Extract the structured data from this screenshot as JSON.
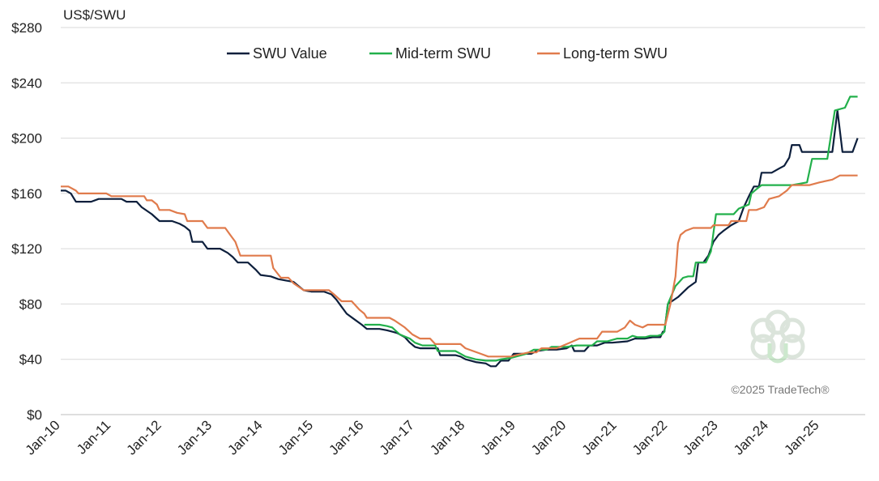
{
  "chart_data": {
    "type": "line",
    "ylabel": "US$/SWU",
    "ylim": [
      0,
      280
    ],
    "yticks": [
      0,
      40,
      80,
      120,
      160,
      200,
      240,
      280
    ],
    "ytick_labels": [
      "$0",
      "$40",
      "$80",
      "$120",
      "$160",
      "$200",
      "$240",
      "$280"
    ],
    "xlim": [
      2010.0,
      2025.9
    ],
    "xticks": [
      2010,
      2011,
      2012,
      2013,
      2014,
      2015,
      2016,
      2017,
      2018,
      2019,
      2020,
      2021,
      2022,
      2023,
      2024,
      2025
    ],
    "xtick_labels": [
      "Jan-10",
      "Jan-11",
      "Jan-12",
      "Jan-13",
      "Jan-14",
      "Jan-15",
      "Jan-16",
      "Jan-17",
      "Jan-18",
      "Jan-19",
      "Jan-20",
      "Jan-21",
      "Jan-22",
      "Jan-23",
      "Jan-24",
      "Jan-25"
    ],
    "grid": "horizontal",
    "legend_position": "top",
    "copyright": "©2025 TradeTech®",
    "series": [
      {
        "name": "SWU Value",
        "color": "#0d1f3c",
        "points": [
          [
            2010.0,
            162
          ],
          [
            2010.1,
            162
          ],
          [
            2010.2,
            160
          ],
          [
            2010.3,
            154
          ],
          [
            2010.6,
            154
          ],
          [
            2010.75,
            156
          ],
          [
            2011.2,
            156
          ],
          [
            2011.3,
            154
          ],
          [
            2011.5,
            154
          ],
          [
            2011.6,
            150
          ],
          [
            2011.8,
            145
          ],
          [
            2011.95,
            140
          ],
          [
            2012.2,
            140
          ],
          [
            2012.35,
            138
          ],
          [
            2012.45,
            136
          ],
          [
            2012.55,
            133
          ],
          [
            2012.6,
            125
          ],
          [
            2012.8,
            125
          ],
          [
            2012.9,
            120
          ],
          [
            2013.15,
            120
          ],
          [
            2013.3,
            117
          ],
          [
            2013.4,
            114
          ],
          [
            2013.5,
            110
          ],
          [
            2013.7,
            110
          ],
          [
            2013.85,
            105
          ],
          [
            2013.95,
            101
          ],
          [
            2014.15,
            100
          ],
          [
            2014.3,
            98
          ],
          [
            2014.45,
            97
          ],
          [
            2014.6,
            96
          ],
          [
            2014.7,
            93
          ],
          [
            2014.8,
            90
          ],
          [
            2014.95,
            89
          ],
          [
            2015.2,
            89
          ],
          [
            2015.35,
            87
          ],
          [
            2015.45,
            83
          ],
          [
            2015.55,
            78
          ],
          [
            2015.65,
            73
          ],
          [
            2015.8,
            69
          ],
          [
            2015.95,
            65
          ],
          [
            2016.05,
            62
          ],
          [
            2016.3,
            62
          ],
          [
            2016.45,
            61
          ],
          [
            2016.55,
            60
          ],
          [
            2016.65,
            59
          ],
          [
            2016.8,
            56
          ],
          [
            2016.9,
            52
          ],
          [
            2017.0,
            49
          ],
          [
            2017.1,
            48
          ],
          [
            2017.45,
            48
          ],
          [
            2017.5,
            43
          ],
          [
            2017.8,
            43
          ],
          [
            2017.9,
            42
          ],
          [
            2018.0,
            40
          ],
          [
            2018.2,
            38
          ],
          [
            2018.4,
            37
          ],
          [
            2018.5,
            35
          ],
          [
            2018.6,
            35
          ],
          [
            2018.7,
            39
          ],
          [
            2018.85,
            39
          ],
          [
            2018.95,
            44
          ],
          [
            2019.3,
            44
          ],
          [
            2019.4,
            46
          ],
          [
            2019.6,
            47
          ],
          [
            2019.8,
            47
          ],
          [
            2020.0,
            48
          ],
          [
            2020.1,
            50
          ],
          [
            2020.15,
            46
          ],
          [
            2020.35,
            46
          ],
          [
            2020.45,
            50
          ],
          [
            2020.6,
            50
          ],
          [
            2020.75,
            52
          ],
          [
            2020.9,
            52
          ],
          [
            2021.2,
            53
          ],
          [
            2021.35,
            55
          ],
          [
            2021.55,
            55
          ],
          [
            2021.7,
            56
          ],
          [
            2021.85,
            56
          ],
          [
            2021.9,
            60
          ],
          [
            2021.93,
            60
          ],
          [
            2022.0,
            80
          ],
          [
            2022.2,
            85
          ],
          [
            2022.4,
            92
          ],
          [
            2022.55,
            96
          ],
          [
            2022.6,
            110
          ],
          [
            2022.7,
            110
          ],
          [
            2022.8,
            115
          ],
          [
            2022.9,
            125
          ],
          [
            2023.0,
            130
          ],
          [
            2023.1,
            133
          ],
          [
            2023.25,
            137
          ],
          [
            2023.4,
            140
          ],
          [
            2023.5,
            150
          ],
          [
            2023.6,
            158
          ],
          [
            2023.7,
            165
          ],
          [
            2023.8,
            165
          ],
          [
            2023.85,
            175
          ],
          [
            2024.05,
            175
          ],
          [
            2024.2,
            178
          ],
          [
            2024.3,
            180
          ],
          [
            2024.4,
            186
          ],
          [
            2024.45,
            195
          ],
          [
            2024.6,
            195
          ],
          [
            2024.65,
            190
          ],
          [
            2024.95,
            190
          ],
          [
            2025.15,
            190
          ],
          [
            2025.25,
            190
          ],
          [
            2025.35,
            220
          ],
          [
            2025.45,
            190
          ],
          [
            2025.65,
            190
          ],
          [
            2025.75,
            200
          ]
        ]
      },
      {
        "name": "Mid-term SWU",
        "color": "#22b04b",
        "points": [
          [
            2016.0,
            65
          ],
          [
            2016.3,
            65
          ],
          [
            2016.45,
            64
          ],
          [
            2016.55,
            63
          ],
          [
            2016.7,
            58
          ],
          [
            2016.9,
            55
          ],
          [
            2017.0,
            52
          ],
          [
            2017.15,
            50
          ],
          [
            2017.4,
            50
          ],
          [
            2017.45,
            46
          ],
          [
            2017.8,
            46
          ],
          [
            2017.9,
            44
          ],
          [
            2018.0,
            42
          ],
          [
            2018.2,
            40
          ],
          [
            2018.4,
            39
          ],
          [
            2018.6,
            39
          ],
          [
            2018.7,
            40
          ],
          [
            2018.9,
            41
          ],
          [
            2019.0,
            42
          ],
          [
            2019.2,
            44
          ],
          [
            2019.35,
            47
          ],
          [
            2019.6,
            47
          ],
          [
            2019.7,
            49
          ],
          [
            2020.0,
            49
          ],
          [
            2020.2,
            50
          ],
          [
            2020.5,
            50
          ],
          [
            2020.6,
            53
          ],
          [
            2020.8,
            53
          ],
          [
            2021.0,
            55
          ],
          [
            2021.2,
            55
          ],
          [
            2021.3,
            57
          ],
          [
            2021.4,
            56
          ],
          [
            2021.55,
            56
          ],
          [
            2021.65,
            57
          ],
          [
            2021.8,
            57
          ],
          [
            2021.88,
            58
          ],
          [
            2021.93,
            60
          ],
          [
            2022.0,
            80
          ],
          [
            2022.15,
            93
          ],
          [
            2022.3,
            99
          ],
          [
            2022.4,
            100
          ],
          [
            2022.5,
            100
          ],
          [
            2022.55,
            110
          ],
          [
            2022.75,
            110
          ],
          [
            2022.85,
            118
          ],
          [
            2022.95,
            145
          ],
          [
            2023.3,
            145
          ],
          [
            2023.4,
            149
          ],
          [
            2023.6,
            152
          ],
          [
            2023.65,
            160
          ],
          [
            2023.75,
            163
          ],
          [
            2023.85,
            166
          ],
          [
            2024.3,
            166
          ],
          [
            2024.45,
            166
          ],
          [
            2024.6,
            167
          ],
          [
            2024.75,
            168
          ],
          [
            2024.85,
            185
          ],
          [
            2025.15,
            185
          ],
          [
            2025.3,
            220
          ],
          [
            2025.5,
            222
          ],
          [
            2025.6,
            230
          ],
          [
            2025.75,
            230
          ]
        ]
      },
      {
        "name": "Long-term SWU",
        "color": "#e07b4c",
        "points": [
          [
            2010.0,
            165
          ],
          [
            2010.15,
            165
          ],
          [
            2010.3,
            162
          ],
          [
            2010.35,
            160
          ],
          [
            2010.9,
            160
          ],
          [
            2011.0,
            158
          ],
          [
            2011.65,
            158
          ],
          [
            2011.7,
            155
          ],
          [
            2011.8,
            155
          ],
          [
            2011.9,
            152
          ],
          [
            2011.95,
            148
          ],
          [
            2012.15,
            148
          ],
          [
            2012.3,
            146
          ],
          [
            2012.45,
            145
          ],
          [
            2012.5,
            140
          ],
          [
            2012.8,
            140
          ],
          [
            2012.9,
            135
          ],
          [
            2013.25,
            135
          ],
          [
            2013.35,
            130
          ],
          [
            2013.45,
            125
          ],
          [
            2013.55,
            115
          ],
          [
            2014.15,
            115
          ],
          [
            2014.2,
            106
          ],
          [
            2014.35,
            99
          ],
          [
            2014.5,
            99
          ],
          [
            2014.55,
            97
          ],
          [
            2014.6,
            95
          ],
          [
            2014.8,
            90
          ],
          [
            2015.3,
            90
          ],
          [
            2015.4,
            87
          ],
          [
            2015.55,
            82
          ],
          [
            2015.75,
            82
          ],
          [
            2015.9,
            76
          ],
          [
            2016.0,
            73
          ],
          [
            2016.05,
            70
          ],
          [
            2016.5,
            70
          ],
          [
            2016.6,
            68
          ],
          [
            2016.8,
            63
          ],
          [
            2016.95,
            58
          ],
          [
            2017.1,
            55
          ],
          [
            2017.3,
            55
          ],
          [
            2017.4,
            51
          ],
          [
            2017.9,
            51
          ],
          [
            2018.0,
            48
          ],
          [
            2018.15,
            46
          ],
          [
            2018.3,
            44
          ],
          [
            2018.45,
            42
          ],
          [
            2018.9,
            42
          ],
          [
            2019.0,
            43
          ],
          [
            2019.25,
            45
          ],
          [
            2019.4,
            45
          ],
          [
            2019.5,
            48
          ],
          [
            2019.8,
            48
          ],
          [
            2020.0,
            51
          ],
          [
            2020.25,
            55
          ],
          [
            2020.6,
            55
          ],
          [
            2020.7,
            60
          ],
          [
            2021.0,
            60
          ],
          [
            2021.15,
            63
          ],
          [
            2021.25,
            68
          ],
          [
            2021.35,
            65
          ],
          [
            2021.5,
            63
          ],
          [
            2021.6,
            65
          ],
          [
            2021.95,
            65
          ],
          [
            2022.05,
            80
          ],
          [
            2022.15,
            100
          ],
          [
            2022.2,
            124
          ],
          [
            2022.25,
            130
          ],
          [
            2022.35,
            133
          ],
          [
            2022.5,
            135
          ],
          [
            2022.85,
            135
          ],
          [
            2022.9,
            137
          ],
          [
            2023.2,
            137
          ],
          [
            2023.25,
            140
          ],
          [
            2023.55,
            140
          ],
          [
            2023.6,
            148
          ],
          [
            2023.75,
            148
          ],
          [
            2023.9,
            150
          ],
          [
            2024.0,
            156
          ],
          [
            2024.2,
            158
          ],
          [
            2024.35,
            162
          ],
          [
            2024.45,
            166
          ],
          [
            2024.8,
            166
          ],
          [
            2025.0,
            168
          ],
          [
            2025.25,
            170
          ],
          [
            2025.4,
            173
          ],
          [
            2025.75,
            173
          ]
        ]
      }
    ]
  }
}
